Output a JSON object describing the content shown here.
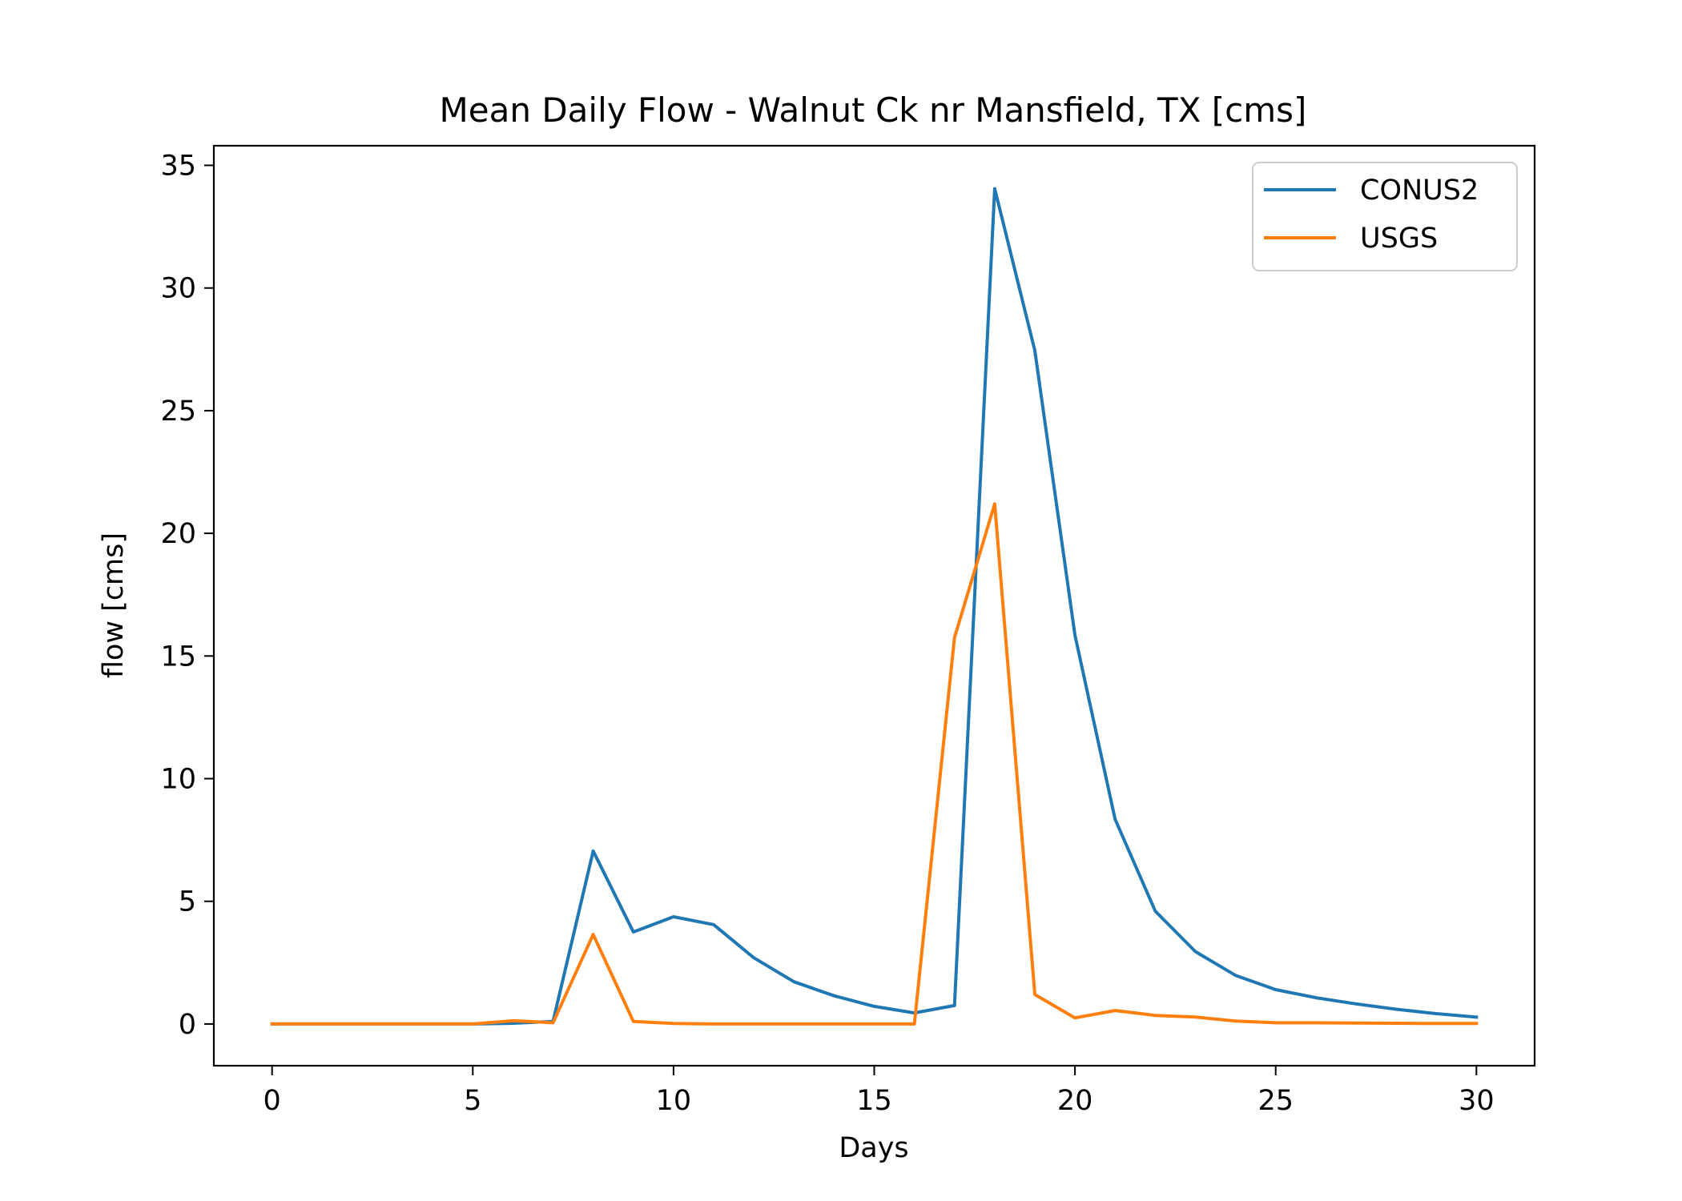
{
  "chart_data": {
    "type": "line",
    "title": "Mean Daily Flow - Walnut Ck nr Mansfield, TX [cms]",
    "xlabel": "Days",
    "ylabel": "flow [cms]",
    "xlim": [
      -1.45,
      31.45
    ],
    "ylim": [
      -1.7,
      35.8
    ],
    "xticks": [
      0,
      5,
      10,
      15,
      20,
      25,
      30
    ],
    "yticks": [
      0,
      5,
      10,
      15,
      20,
      25,
      30,
      35
    ],
    "grid": false,
    "legend_position": "top-right",
    "x": [
      0,
      1,
      2,
      3,
      4,
      5,
      6,
      7,
      8,
      9,
      10,
      11,
      12,
      13,
      14,
      15,
      16,
      17,
      18,
      19,
      20,
      21,
      22,
      23,
      24,
      25,
      26,
      27,
      28,
      29,
      30
    ],
    "series": [
      {
        "name": "CONUS2",
        "color": "#1f77b4",
        "values": [
          0.0,
          0.0,
          0.0,
          0.0,
          0.0,
          0.0,
          0.03,
          0.1,
          7.05,
          3.75,
          4.37,
          4.05,
          2.7,
          1.72,
          1.15,
          0.72,
          0.45,
          0.75,
          34.05,
          27.45,
          15.85,
          8.35,
          4.6,
          2.95,
          1.98,
          1.4,
          1.07,
          0.82,
          0.6,
          0.42,
          0.28
        ]
      },
      {
        "name": "USGS",
        "color": "#ff7f0e",
        "values": [
          0.0,
          0.0,
          0.0,
          0.0,
          0.0,
          0.0,
          0.13,
          0.05,
          3.65,
          0.1,
          0.02,
          0.0,
          0.0,
          0.0,
          0.0,
          0.0,
          0.0,
          15.75,
          21.2,
          1.2,
          0.25,
          0.55,
          0.35,
          0.28,
          0.12,
          0.05,
          0.05,
          0.04,
          0.03,
          0.02,
          0.02
        ]
      }
    ]
  }
}
